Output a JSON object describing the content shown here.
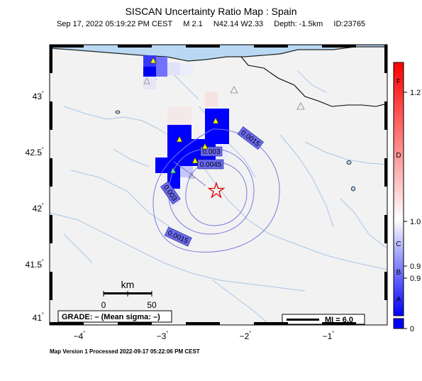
{
  "header": {
    "title": "SISCAN Uncertainty Ratio Map : Spain",
    "datetime": "Sep 17, 2022 05:19:22 PM CEST",
    "magnitude": "M 2.1",
    "location": "N42.14 W2.33",
    "depth": "Depth: -1.5km",
    "event_id": "ID:23765"
  },
  "map": {
    "lat_ticks": [
      "43",
      "42.5",
      "42",
      "41.5",
      "41"
    ],
    "lon_ticks": [
      "−4",
      "−3",
      "−2",
      "−1"
    ],
    "degree_mark": "˚",
    "contours": [
      "0.0015",
      "0.003",
      "0.0045",
      "0.003",
      "0.0015"
    ],
    "scalebar": {
      "label": "km",
      "start": "0",
      "end": "50"
    },
    "grade_text": "GRADE: – (Mean sigma: –)",
    "mi_text": "MI = 6.0",
    "colors": {
      "land": "#f2f2f2",
      "sea": "#b9d8f4",
      "high_ratio": "#0000ff",
      "epicenter": "#e00000",
      "station": "#ffff00"
    }
  },
  "colorbar": {
    "grades": [
      "F",
      "D",
      "C",
      "B",
      "A"
    ],
    "values": [
      "1.2",
      "1.0",
      "0.9",
      "0.9",
      "0"
    ],
    "colors": {
      "top": "#ff0000",
      "middle": "#ffffff",
      "bottom": "#0000ff"
    }
  },
  "footer": {
    "processed": "Map Version 1 Processed 2022-09-17 05:22:06 PM CEST"
  }
}
